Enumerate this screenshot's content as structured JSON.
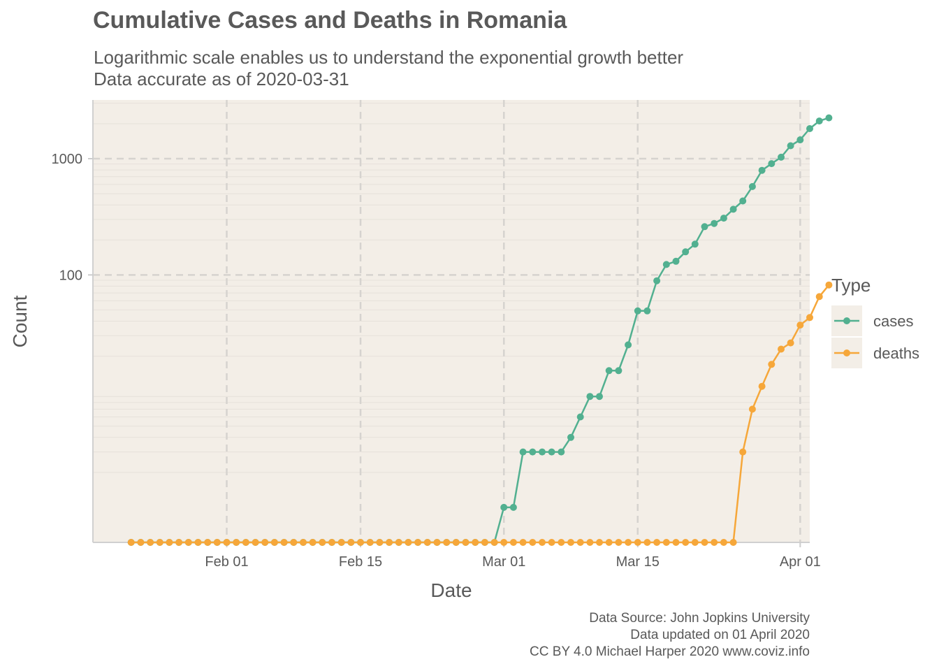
{
  "chart_data": {
    "type": "line",
    "title": "Cumulative Cases and Deaths in Romania",
    "subtitle": [
      "Logarithmic scale enables us to understand the exponential growth better",
      "Data accurate as of 2020-03-31"
    ],
    "xlabel": "Date",
    "ylabel": "Count",
    "y_scale": "log",
    "ylim": [
      0.5,
      3200
    ],
    "xlim": [
      "2020-01-18",
      "2020-04-02"
    ],
    "x_ticks": [
      "2020-02-01",
      "2020-02-15",
      "2020-03-01",
      "2020-03-15",
      "2020-04-01"
    ],
    "x_tick_labels": [
      "Feb 01",
      "Feb 15",
      "Mar 01",
      "Mar 15",
      "Apr 01"
    ],
    "y_ticks": [
      100,
      1000
    ],
    "y_tick_labels": [
      "100",
      "1000"
    ],
    "grid": true,
    "legend_title": "Type",
    "legend_position": "right",
    "x_start": "2020-01-22",
    "series": [
      {
        "name": "cases",
        "color": "#52b090",
        "values": [
          0,
          0,
          0,
          0,
          0,
          0,
          0,
          0,
          0,
          0,
          0,
          0,
          0,
          0,
          0,
          0,
          0,
          0,
          0,
          0,
          0,
          0,
          0,
          0,
          0,
          0,
          0,
          0,
          0,
          0,
          0,
          0,
          0,
          0,
          0,
          0,
          0,
          0,
          0,
          1,
          1,
          3,
          3,
          3,
          3,
          3,
          4,
          6,
          9,
          9,
          15,
          15,
          25,
          49,
          49,
          89,
          123,
          131,
          158,
          184,
          260,
          277,
          308,
          367,
          433,
          576,
          794,
          906,
          1029,
          1292,
          1452,
          1815,
          2109,
          2245
        ]
      },
      {
        "name": "deaths",
        "color": "#f6a73a",
        "values": [
          0,
          0,
          0,
          0,
          0,
          0,
          0,
          0,
          0,
          0,
          0,
          0,
          0,
          0,
          0,
          0,
          0,
          0,
          0,
          0,
          0,
          0,
          0,
          0,
          0,
          0,
          0,
          0,
          0,
          0,
          0,
          0,
          0,
          0,
          0,
          0,
          0,
          0,
          0,
          0,
          0,
          0,
          0,
          0,
          0,
          0,
          0,
          0,
          0,
          0,
          0,
          0,
          0,
          0,
          0,
          0,
          0,
          0,
          0,
          0,
          0,
          0,
          0,
          0,
          3,
          7,
          11,
          17,
          23,
          26,
          37,
          43,
          65,
          82
        ]
      }
    ],
    "caption": [
      "Data Source: John Jopkins University",
      "Data updated on 01 April 2020",
      "CC BY 4.0 Michael Harper 2020 www.coviz.info"
    ]
  }
}
